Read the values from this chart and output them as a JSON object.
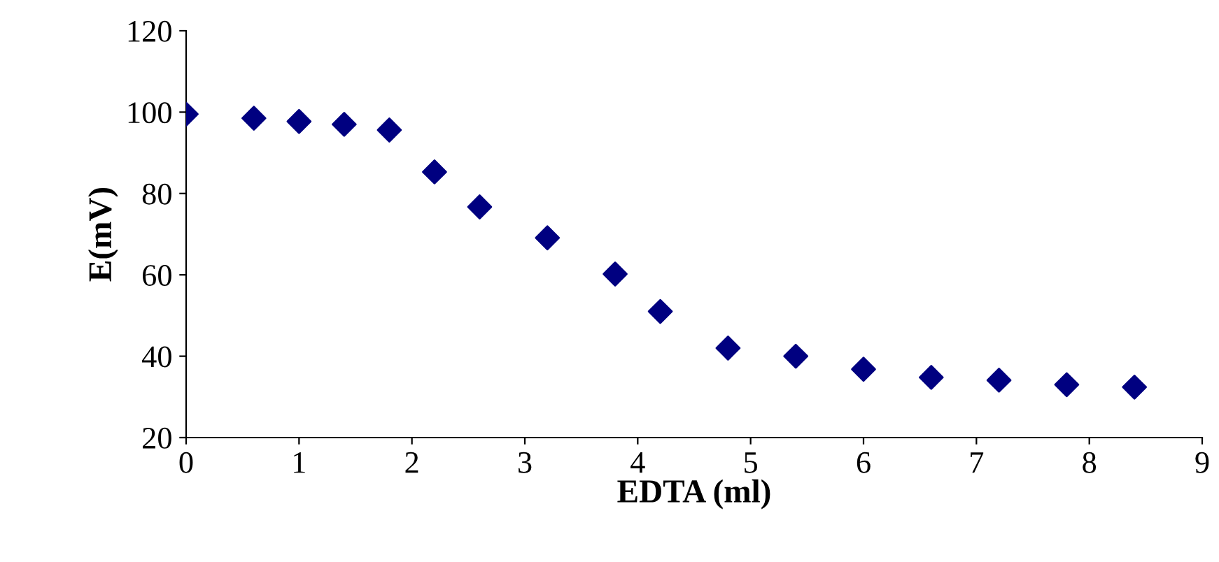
{
  "chart_data": {
    "type": "scatter",
    "xlabel": "EDTA (ml)",
    "ylabel": "E(mV)",
    "x": [
      0,
      0.6,
      1.0,
      1.4,
      1.8,
      2.2,
      2.6,
      3.2,
      3.8,
      4.2,
      4.8,
      5.4,
      6.0,
      6.6,
      7.2,
      7.8,
      8.4
    ],
    "series": [
      {
        "color": "#000080",
        "values": [
          99.5,
          98.5,
          97.7,
          97,
          95.6,
          85.3,
          76.7,
          69.1,
          60.2,
          51,
          42,
          40,
          36.8,
          34.8,
          34.1,
          33,
          32.4
        ]
      }
    ],
    "xlim": [
      0,
      9
    ],
    "xticks": [
      0,
      1,
      2,
      3,
      4,
      5,
      6,
      7,
      8,
      9
    ],
    "ylim": [
      20,
      120
    ],
    "yticks": [
      20,
      40,
      60,
      80,
      100,
      120
    ],
    "marker": "diamond",
    "grid": false,
    "legend": false
  }
}
